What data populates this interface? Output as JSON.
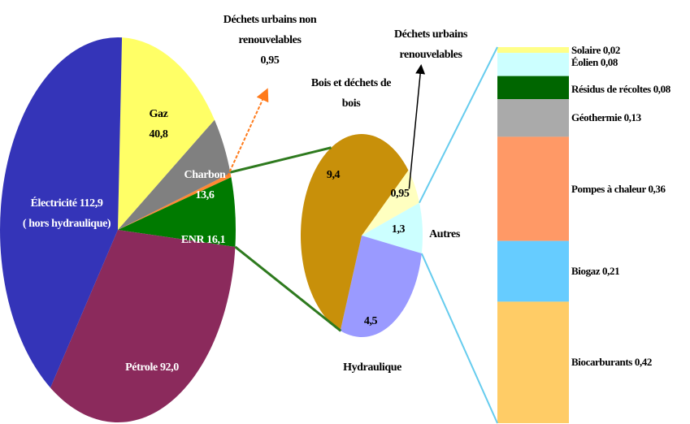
{
  "chart_data": [
    {
      "type": "pie",
      "categories": [
        "Gaz",
        "Charbon",
        "Déchets urbains non renouvelables",
        "ENR",
        "Pétrole",
        "Électricité"
      ],
      "values": [
        40.8,
        13.6,
        0.95,
        16.1,
        92.0,
        112.9
      ],
      "value_labels": [
        "40,8",
        "13,6",
        "0,95",
        "16,1",
        "92,0",
        "112,9"
      ],
      "colors": [
        "#ffff66",
        "#808080",
        "#ff8833",
        "#007a00",
        "#8b2a5c",
        "#3434b8"
      ],
      "note": "( hors hydraulique)"
    },
    {
      "type": "pie",
      "categories": [
        "Déchets urbains renouvelables",
        "Autres",
        "Hydraulique",
        "Bois et déchets de bois"
      ],
      "values": [
        0.95,
        1.3,
        4.5,
        9.4
      ],
      "value_labels": [
        "0,95",
        "1,3",
        "4,5",
        "9,4"
      ],
      "colors": [
        "#ffffc0",
        "#ccffff",
        "#9a9aff",
        "#c8900a"
      ]
    },
    {
      "type": "stacked_bar",
      "categories": [
        "Solaire",
        "Éolien",
        "Résidus de récoltes",
        "Géothermie",
        "Pompes à chaleur",
        "Biogaz",
        "Biocarburants"
      ],
      "values": [
        0.02,
        0.08,
        0.08,
        0.13,
        0.36,
        0.21,
        0.42
      ],
      "value_labels": [
        "0,02",
        "0,08",
        "0,08",
        "0,13",
        "0,36",
        "0,21",
        "0,42"
      ],
      "colors": [
        "#ffff88",
        "#ccffff",
        "#006600",
        "#aaaaaa",
        "#ff9966",
        "#66ccff",
        "#ffcc66"
      ]
    }
  ]
}
